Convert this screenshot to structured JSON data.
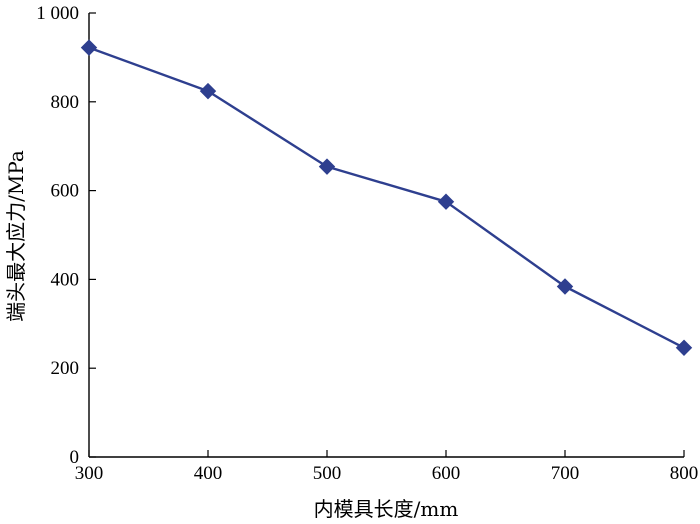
{
  "chart_data": {
    "type": "line",
    "title": "",
    "xlabel": "内模具长度/mm",
    "ylabel": "端头最大应力/MPa",
    "x": [
      300,
      400,
      500,
      600,
      700,
      800
    ],
    "series": [
      {
        "values": [
          922,
          824,
          654,
          575,
          384,
          246
        ],
        "marker": "diamond",
        "color": "#2E3F8F"
      }
    ],
    "xlim": [
      300,
      800
    ],
    "ylim": [
      0,
      1000
    ],
    "xticks": [
      "300",
      "400",
      "500",
      "600",
      "700",
      "800"
    ],
    "yticks": [
      "0",
      "200",
      "400",
      "600",
      "800",
      "1 000"
    ],
    "ytick_values": [
      0,
      200,
      400,
      600,
      800,
      1000
    ],
    "grid": false,
    "legend": "none",
    "axis_color": "#000000"
  }
}
